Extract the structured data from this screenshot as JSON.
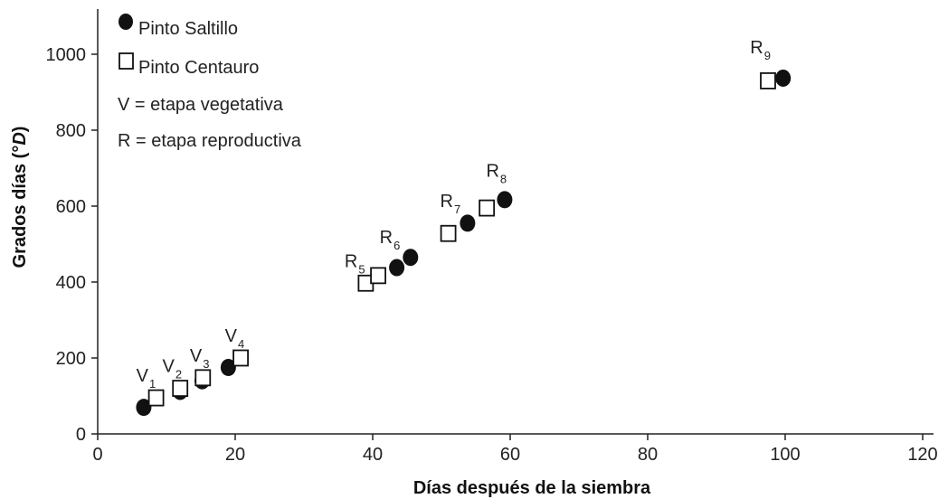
{
  "chart_data": {
    "type": "scatter",
    "xlabel": "Días después de la siembra",
    "ylabel_main": "Grados días (°",
    "ylabel_italic": "D",
    "ylabel_close": ")",
    "xlim": [
      0,
      120
    ],
    "ylim": [
      0,
      1000
    ],
    "x_ticks": [
      0,
      20,
      40,
      60,
      80,
      100,
      120
    ],
    "y_ticks": [
      0,
      200,
      400,
      600,
      800,
      1000
    ],
    "grid": false,
    "legend_position": "top-left",
    "legend": {
      "series1": "Pinto Saltillo",
      "series2": "Pinto Centauro",
      "note1": "V = etapa vegetativa",
      "note2": "R = etapa reproductiva"
    },
    "series": [
      {
        "name": "Pinto Saltillo",
        "marker": "filled-circle",
        "color": "#111111",
        "points": [
          {
            "x": 6.7,
            "y": 70
          },
          {
            "x": 12,
            "y": 112
          },
          {
            "x": 15.2,
            "y": 140
          },
          {
            "x": 19,
            "y": 175
          },
          {
            "x": 43.5,
            "y": 438
          },
          {
            "x": 45.5,
            "y": 465
          },
          {
            "x": 53.8,
            "y": 555
          },
          {
            "x": 59.2,
            "y": 617
          },
          {
            "x": 99.7,
            "y": 937
          }
        ]
      },
      {
        "name": "Pinto Centauro",
        "marker": "open-square",
        "color": "#111111",
        "points": [
          {
            "x": 8.5,
            "y": 95
          },
          {
            "x": 12,
            "y": 120
          },
          {
            "x": 15.3,
            "y": 148
          },
          {
            "x": 20.8,
            "y": 200
          },
          {
            "x": 39,
            "y": 397
          },
          {
            "x": 40.8,
            "y": 417
          },
          {
            "x": 51,
            "y": 528
          },
          {
            "x": 56.6,
            "y": 595
          },
          {
            "x": 97.5,
            "y": 930
          }
        ]
      }
    ],
    "annotations": [
      {
        "main": "V",
        "sub": "1",
        "x": 8.5,
        "y": 95
      },
      {
        "main": "V",
        "sub": "2",
        "x": 12.3,
        "y": 120
      },
      {
        "main": "V",
        "sub": "3",
        "x": 16.3,
        "y": 148
      },
      {
        "main": "V",
        "sub": "4",
        "x": 21.4,
        "y": 200
      },
      {
        "main": "R",
        "sub": "5",
        "x": 38.8,
        "y": 397
      },
      {
        "main": "R",
        "sub": "6",
        "x": 43.9,
        "y": 460
      },
      {
        "main": "R",
        "sub": "7",
        "x": 52.7,
        "y": 555
      },
      {
        "main": "R",
        "sub": "8",
        "x": 59.4,
        "y": 635
      },
      {
        "main": "R",
        "sub": "9",
        "x": 97.8,
        "y": 960
      }
    ]
  }
}
